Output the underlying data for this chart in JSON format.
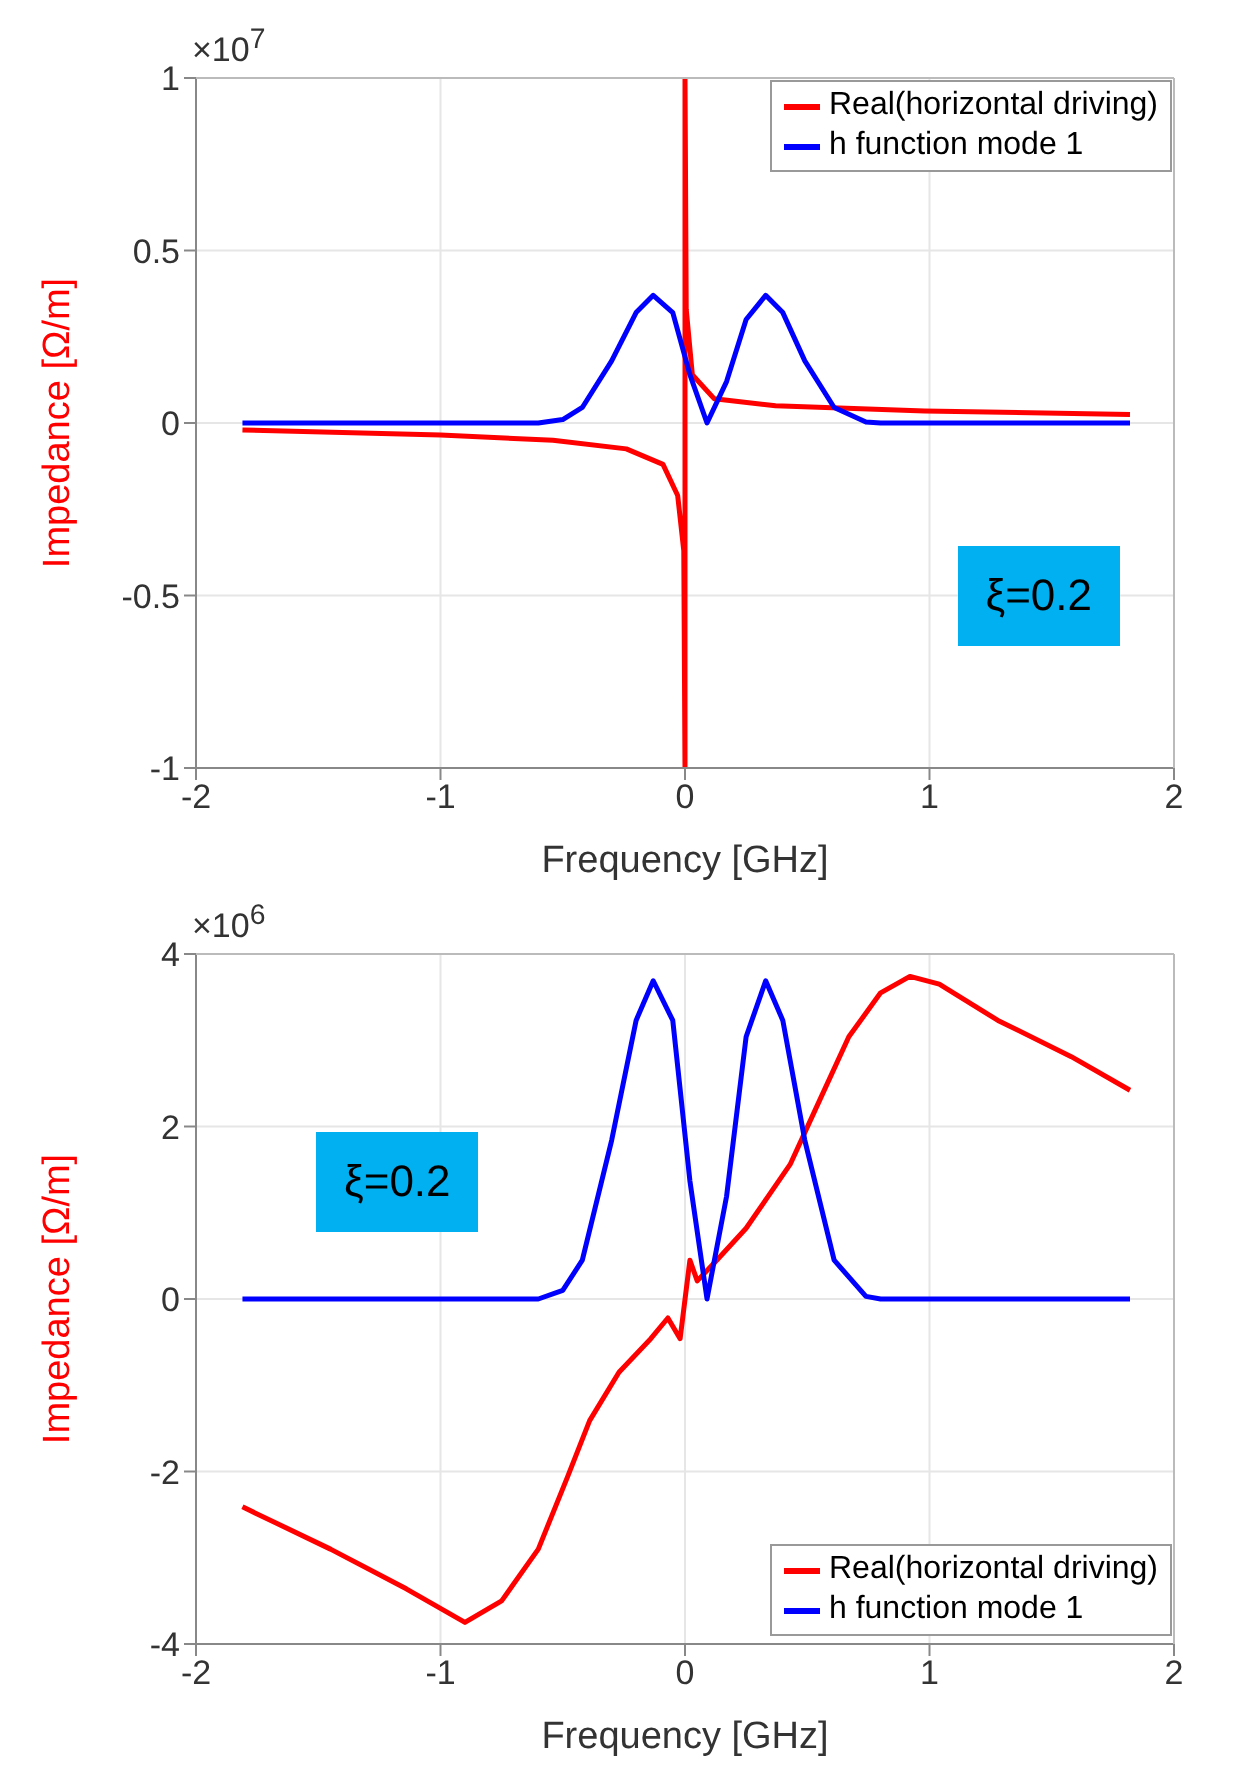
{
  "chart_data": [
    {
      "type": "line",
      "xlabel": "Frequency [GHz]",
      "ylabel": "Impedance [Ω/m]",
      "annotations": [
        "×10$^{7}$",
        "ξ=0.2"
      ],
      "xlim": [
        -2,
        2
      ],
      "xticks": [
        -2,
        -1,
        0,
        1,
        2
      ],
      "ylim": [
        -1,
        1
      ],
      "yticks": [
        -1,
        -0.5,
        0,
        0.5,
        1
      ],
      "grid": true,
      "legend": "top right",
      "line_style": "solid",
      "marker": "none",
      "series": [
        {
          "name": "Real(horizontal driving)",
          "color": "#ff0000",
          "x": [
            -1.81,
            -1,
            -0.54,
            -0.24,
            -0.09,
            -0.03,
            -0.005,
            0,
            0,
            0.005,
            0.03,
            0.12,
            0.37,
            0.98,
            1.82
          ],
          "values": [
            -0.02,
            -0.035,
            -0.05,
            -0.075,
            -0.12,
            -0.21,
            -0.37,
            -1,
            1,
            0.33,
            0.14,
            0.07,
            0.05,
            0.035,
            0.025
          ]
        },
        {
          "name": "h function mode 1",
          "color": "#0000ff",
          "x": [
            -1.81,
            -0.6,
            -0.5,
            -0.42,
            -0.3,
            -0.2,
            -0.13,
            -0.05,
            0.02,
            0.09,
            0.17,
            0.25,
            0.33,
            0.4,
            0.49,
            0.61,
            0.74,
            0.8,
            1.82
          ],
          "values": [
            0,
            0,
            0.01,
            0.045,
            0.18,
            0.32,
            0.37,
            0.32,
            0.14,
            0,
            0.12,
            0.3,
            0.37,
            0.32,
            0.18,
            0.045,
            0.003,
            0,
            0
          ]
        }
      ]
    },
    {
      "type": "line",
      "xlabel": "Frequency [GHz]",
      "ylabel": "Impedance [Ω/m]",
      "annotations": [
        "×10$^{6}$",
        "ξ=0.2"
      ],
      "xlim": [
        -2,
        2
      ],
      "xticks": [
        -2,
        -1,
        0,
        1,
        2
      ],
      "ylim": [
        -4,
        4
      ],
      "yticks": [
        -4,
        -2,
        0,
        2,
        4
      ],
      "grid": true,
      "legend": "bottom right",
      "line_style": "solid",
      "marker": "none",
      "series": [
        {
          "name": "Real(horizontal driving)",
          "color": "#ff0000",
          "x": [
            -1.81,
            -1.45,
            -1.14,
            -0.9,
            -0.75,
            -0.6,
            -0.48,
            -0.39,
            -0.27,
            -0.14,
            -0.07,
            -0.02,
            0.02,
            0.05,
            0.13,
            0.25,
            0.34,
            0.43,
            0.55,
            0.67,
            0.8,
            0.92,
            1.04,
            1.28,
            1.58,
            1.82
          ],
          "values": [
            -2.41,
            -2.9,
            -3.36,
            -3.75,
            -3.5,
            -2.9,
            -2.06,
            -1.41,
            -0.85,
            -0.46,
            -0.22,
            -0.46,
            0.45,
            0.21,
            0.45,
            0.82,
            1.19,
            1.56,
            2.3,
            3.04,
            3.55,
            3.74,
            3.65,
            3.23,
            2.81,
            2.42
          ]
        },
        {
          "name": "h function mode 1",
          "color": "#0000ff",
          "x": [
            -1.81,
            -0.6,
            -0.5,
            -0.42,
            -0.3,
            -0.2,
            -0.13,
            -0.05,
            0.02,
            0.09,
            0.17,
            0.25,
            0.33,
            0.4,
            0.49,
            0.61,
            0.74,
            0.8,
            1.82
          ],
          "values": [
            0,
            0,
            0.1,
            0.45,
            1.84,
            3.23,
            3.69,
            3.23,
            1.37,
            0,
            1.19,
            3.04,
            3.69,
            3.23,
            1.84,
            0.45,
            0.03,
            0,
            0
          ]
        }
      ]
    }
  ]
}
